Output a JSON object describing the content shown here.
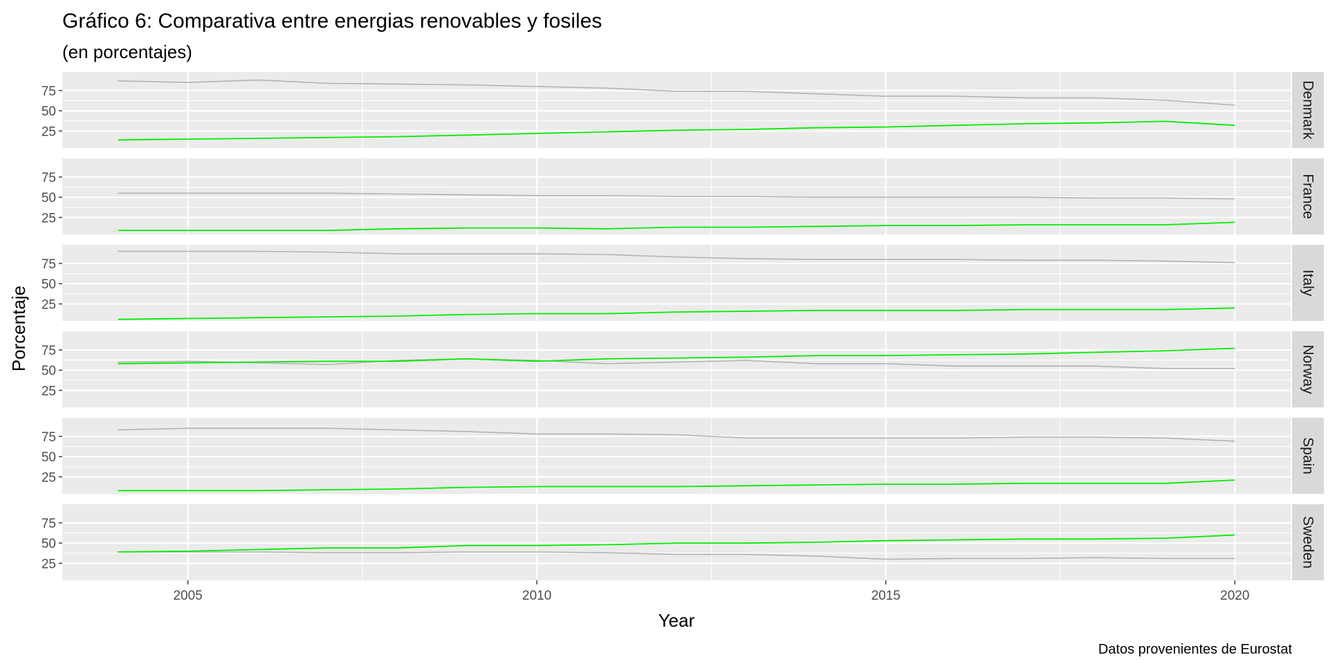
{
  "chart_data": {
    "type": "line",
    "title": "Gráfico 6: Comparativa entre energias renovables y fosiles",
    "subtitle": "(en porcentajes)",
    "caption": "Datos provenientes de Eurostat",
    "xlabel": "Year",
    "ylabel": "Porcentaje",
    "xlim": [
      2003.2,
      2020.8
    ],
    "ylim": [
      4,
      98
    ],
    "x_ticks": [
      2005,
      2010,
      2015,
      2020
    ],
    "y_ticks": [
      25,
      50,
      75
    ],
    "grid": true,
    "facet_layout": "rows",
    "series_colors": {
      "renewables": "#00ee00",
      "fossil": "#b3b3b3"
    },
    "x": [
      2004,
      2005,
      2006,
      2007,
      2008,
      2009,
      2010,
      2011,
      2012,
      2013,
      2014,
      2015,
      2016,
      2017,
      2018,
      2019,
      2020
    ],
    "facets": [
      {
        "label": "Denmark",
        "renewables": [
          14,
          15,
          16,
          17,
          18,
          20,
          22,
          24,
          26,
          27,
          29,
          30,
          32,
          34,
          35,
          37,
          32
        ],
        "fossil": [
          87,
          85,
          88,
          84,
          83,
          82,
          80,
          78,
          74,
          74,
          71,
          68,
          68,
          66,
          66,
          63,
          57
        ]
      },
      {
        "label": "France",
        "renewables": [
          9,
          9,
          9,
          9,
          11,
          12,
          12,
          11,
          13,
          13,
          14,
          15,
          15,
          16,
          16,
          16,
          19
        ],
        "fossil": [
          55,
          55,
          55,
          55,
          54,
          53,
          52,
          52,
          51,
          51,
          50,
          50,
          50,
          50,
          49,
          49,
          48
        ]
      },
      {
        "label": "Italy",
        "renewables": [
          6,
          7,
          8,
          9,
          10,
          12,
          13,
          13,
          15,
          16,
          17,
          17,
          17,
          18,
          18,
          18,
          20
        ],
        "fossil": [
          90,
          90,
          90,
          89,
          87,
          87,
          87,
          86,
          83,
          81,
          80,
          80,
          80,
          79,
          79,
          78,
          76
        ]
      },
      {
        "label": "Norway",
        "renewables": [
          58,
          59,
          60,
          61,
          61,
          64,
          61,
          64,
          65,
          66,
          68,
          68,
          69,
          70,
          72,
          74,
          77
        ],
        "fossil": [
          60,
          61,
          59,
          57,
          62,
          64,
          62,
          58,
          60,
          62,
          58,
          58,
          55,
          55,
          55,
          52,
          52
        ]
      },
      {
        "label": "Spain",
        "renewables": [
          8,
          8,
          8,
          9,
          10,
          12,
          13,
          13,
          13,
          14,
          15,
          16,
          16,
          17,
          17,
          17,
          21
        ],
        "fossil": [
          83,
          85,
          85,
          85,
          83,
          81,
          78,
          78,
          77,
          73,
          73,
          73,
          73,
          74,
          74,
          73,
          69
        ]
      },
      {
        "label": "Sweden",
        "renewables": [
          39,
          40,
          42,
          44,
          44,
          47,
          47,
          48,
          50,
          50,
          51,
          53,
          54,
          55,
          55,
          56,
          60
        ],
        "fossil": [
          39,
          39,
          39,
          38,
          38,
          39,
          39,
          38,
          36,
          36,
          34,
          30,
          31,
          31,
          32,
          31,
          31
        ]
      }
    ]
  }
}
